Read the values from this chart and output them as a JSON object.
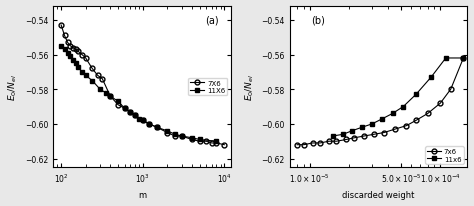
{
  "panel_a": {
    "label": "(a)",
    "xlabel": "m",
    "xlim_log": [
      80,
      12000
    ],
    "ylim": [
      -0.625,
      -0.532
    ],
    "yticks": [
      -0.54,
      -0.56,
      -0.58,
      -0.6,
      -0.62
    ],
    "series_7x6": {
      "label": "7X6",
      "marker": "o",
      "fillstyle": "none",
      "x": [
        100,
        110,
        120,
        130,
        140,
        150,
        160,
        180,
        200,
        240,
        280,
        320,
        400,
        500,
        600,
        700,
        800,
        1000,
        1200,
        1500,
        2000,
        2500,
        3000,
        4000,
        5000,
        6000,
        7000,
        8000,
        10000
      ],
      "y": [
        -0.543,
        -0.549,
        -0.553,
        -0.555,
        -0.556,
        -0.557,
        -0.558,
        -0.56,
        -0.562,
        -0.568,
        -0.572,
        -0.574,
        -0.584,
        -0.589,
        -0.591,
        -0.593,
        -0.595,
        -0.598,
        -0.6,
        -0.602,
        -0.605,
        -0.607,
        -0.607,
        -0.609,
        -0.61,
        -0.61,
        -0.611,
        -0.611,
        -0.612
      ]
    },
    "series_11x6": {
      "label": "11X6",
      "marker": "s",
      "fillstyle": "full",
      "x": [
        100,
        110,
        120,
        130,
        140,
        150,
        160,
        180,
        200,
        240,
        300,
        350,
        400,
        500,
        600,
        700,
        800,
        900,
        1000,
        1200,
        1500,
        2000,
        2500,
        3000,
        4000,
        5000,
        8000
      ],
      "y": [
        -0.555,
        -0.557,
        -0.559,
        -0.561,
        -0.563,
        -0.565,
        -0.567,
        -0.57,
        -0.572,
        -0.575,
        -0.58,
        -0.582,
        -0.584,
        -0.587,
        -0.591,
        -0.593,
        -0.595,
        -0.597,
        -0.598,
        -0.6,
        -0.602,
        -0.604,
        -0.606,
        -0.607,
        -0.608,
        -0.609,
        -0.61
      ]
    }
  },
  "panel_b": {
    "label": "(b)",
    "xlabel": "discarded weight",
    "xlim_log": [
      7e-06,
      0.00016
    ],
    "ylim": [
      -0.625,
      -0.532
    ],
    "yticks": [
      -0.54,
      -0.56,
      -0.58,
      -0.6,
      -0.62
    ],
    "xticks": [
      1e-05,
      5e-05,
      0.0001
    ],
    "xticklabels": [
      "1.0×10⁻⁵",
      "5.0×10⁻⁵",
      "1.0×10⁻⁴"
    ],
    "series_7x6": {
      "label": "7x6",
      "marker": "o",
      "fillstyle": "none",
      "x": [
        8e-06,
        9e-06,
        1.05e-05,
        1.2e-05,
        1.4e-05,
        1.6e-05,
        1.9e-05,
        2.2e-05,
        2.6e-05,
        3.1e-05,
        3.7e-05,
        4.5e-05,
        5.5e-05,
        6.5e-05,
        8e-05,
        0.0001,
        0.00012,
        0.00015
      ],
      "y": [
        -0.612,
        -0.612,
        -0.611,
        -0.611,
        -0.61,
        -0.61,
        -0.609,
        -0.608,
        -0.607,
        -0.606,
        -0.605,
        -0.603,
        -0.601,
        -0.598,
        -0.594,
        -0.588,
        -0.58,
        -0.562
      ]
    },
    "series_11x6": {
      "label": "11x6",
      "marker": "s",
      "fillstyle": "full",
      "x": [
        1.5e-05,
        1.8e-05,
        2.1e-05,
        2.5e-05,
        3e-05,
        3.6e-05,
        4.3e-05,
        5.2e-05,
        6.5e-05,
        8.5e-05,
        0.00011,
        0.00015
      ],
      "y": [
        -0.607,
        -0.606,
        -0.604,
        -0.602,
        -0.6,
        -0.597,
        -0.594,
        -0.59,
        -0.583,
        -0.573,
        -0.562,
        -0.562
      ]
    }
  },
  "background_color": "#e8e8e8",
  "plot_bg_color": "#ffffff"
}
